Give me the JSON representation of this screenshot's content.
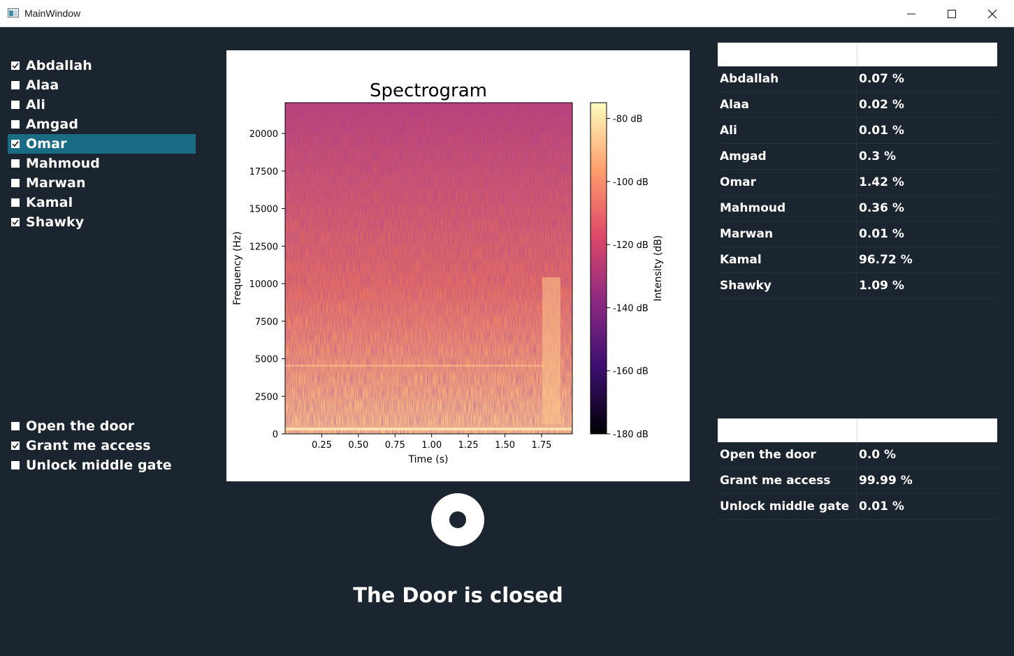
{
  "window": {
    "title": "MainWindow"
  },
  "speakers": [
    {
      "label": "Abdallah",
      "checked": true
    },
    {
      "label": "Alaa",
      "checked": false
    },
    {
      "label": "Ali",
      "checked": false
    },
    {
      "label": "Amgad",
      "checked": false
    },
    {
      "label": "Omar",
      "checked": true,
      "selected": true
    },
    {
      "label": "Mahmoud",
      "checked": false
    },
    {
      "label": "Marwan",
      "checked": false
    },
    {
      "label": "Kamal",
      "checked": false
    },
    {
      "label": "Shawky",
      "checked": true
    }
  ],
  "phrases": [
    {
      "label": "Open the door",
      "checked": false
    },
    {
      "label": "Grant me access",
      "checked": true
    },
    {
      "label": "Unlock middle gate",
      "checked": false
    }
  ],
  "speaker_table": [
    {
      "name": "Abdallah",
      "value": "0.07 %"
    },
    {
      "name": "Alaa",
      "value": "0.02 %"
    },
    {
      "name": "Ali",
      "value": "0.01 %"
    },
    {
      "name": "Amgad",
      "value": "0.3 %"
    },
    {
      "name": "Omar",
      "value": "1.42 %"
    },
    {
      "name": "Mahmoud",
      "value": "0.36 %"
    },
    {
      "name": "Marwan",
      "value": "0.01 %"
    },
    {
      "name": "Kamal",
      "value": "96.72 %"
    },
    {
      "name": "Shawky",
      "value": "1.09 %"
    }
  ],
  "phrase_table": [
    {
      "name": "Open the door",
      "value": "0.0 %"
    },
    {
      "name": "Grant me access",
      "value": "99.99 %"
    },
    {
      "name": "Unlock middle gate",
      "value": "0.01 %"
    }
  ],
  "door": {
    "status": "The Door is closed",
    "icon": "record-icon"
  },
  "chart_data": {
    "type": "heatmap",
    "title": "Spectrogram",
    "xlabel": "Time (s)",
    "ylabel": "Frequency (Hz)",
    "colorbar_label": "Intensity (dB)",
    "xlim": [
      0,
      1.96
    ],
    "ylim": [
      0,
      22050
    ],
    "x_ticks": [
      0.25,
      0.5,
      0.75,
      1.0,
      1.25,
      1.5,
      1.75
    ],
    "x_tick_labels": [
      "0.25",
      "0.50",
      "0.75",
      "1.00",
      "1.25",
      "1.50",
      "1.75"
    ],
    "y_ticks": [
      0,
      2500,
      5000,
      7500,
      10000,
      12500,
      15000,
      17500,
      20000
    ],
    "y_tick_labels": [
      "0",
      "2500",
      "5000",
      "7500",
      "10000",
      "12500",
      "15000",
      "17500",
      "20000"
    ],
    "colorbar_range": [
      -180,
      -75
    ],
    "colorbar_ticks": [
      -80,
      -100,
      -120,
      -140,
      -160,
      -180
    ],
    "colorbar_tick_labels": [
      "-80 dB",
      "-100 dB",
      "-120 dB",
      "-140 dB",
      "-160 dB",
      "-180 dB"
    ],
    "colormap": [
      "#000004",
      "#3b0f70",
      "#8c2981",
      "#de4968",
      "#fe9f6d",
      "#fcfdbf"
    ]
  }
}
